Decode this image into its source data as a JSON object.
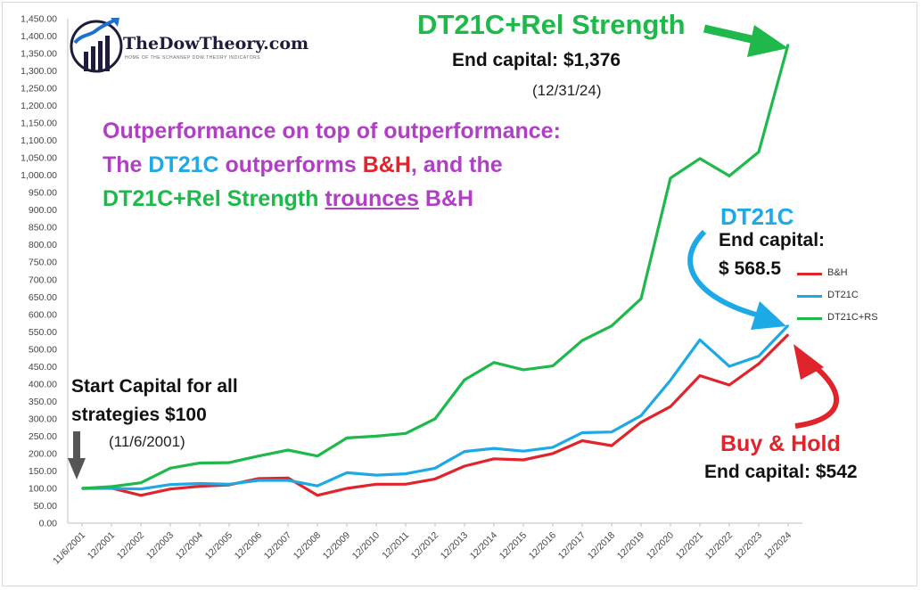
{
  "chart_data": {
    "type": "line",
    "categories": [
      "11/6/2001",
      "12/2001",
      "12/2002",
      "12/2003",
      "12/2004",
      "12/2005",
      "12/2006",
      "12/2007",
      "12/2008",
      "12/2009",
      "12/2010",
      "12/2011",
      "12/2012",
      "12/2013",
      "12/2014",
      "12/2015",
      "12/2016",
      "12/2017",
      "12/2018",
      "12/2019",
      "12/2020",
      "12/2021",
      "12/2022",
      "12/2023",
      "12/2024"
    ],
    "y_ticks": [
      "0.00",
      "50.00",
      "100.00",
      "150.00",
      "200.00",
      "250.00",
      "300.00",
      "350.00",
      "400.00",
      "450.00",
      "500.00",
      "550.00",
      "600.00",
      "650.00",
      "700.00",
      "750.00",
      "800.00",
      "850.00",
      "900.00",
      "950.00",
      "1,000.00",
      "1,050.00",
      "1,100.00",
      "1,150.00",
      "1,200.00",
      "1,250.00",
      "1,300.00",
      "1,350.00",
      "1,400.00",
      "1,450.00"
    ],
    "ylim": [
      0,
      1450
    ],
    "grid": false,
    "legend_position": "right",
    "series": [
      {
        "name": "B&H",
        "color": "#e0242b",
        "values": [
          100,
          101,
          80,
          98,
          106,
          110,
          128,
          130,
          80,
          100,
          112,
          112,
          127,
          164,
          185,
          182,
          200,
          237,
          223,
          290,
          335,
          424,
          397,
          458,
          542
        ]
      },
      {
        "name": "DT21C",
        "color": "#1ca9e6",
        "values": [
          100,
          100,
          98,
          111,
          114,
          112,
          123,
          123,
          107,
          145,
          138,
          142,
          158,
          206,
          215,
          207,
          218,
          260,
          262,
          309,
          411,
          527,
          451,
          480,
          568.5
        ]
      },
      {
        "name": "DT21C+RS",
        "color": "#1fb84a",
        "values": [
          100,
          105,
          116,
          158,
          173,
          174,
          193,
          210,
          193,
          245,
          250,
          258,
          300,
          412,
          462,
          441,
          452,
          525,
          567,
          645,
          992,
          1048,
          998,
          1067,
          1376
        ]
      }
    ]
  },
  "logo": {
    "text": "TheDowTheory.com",
    "tagline": "HOME OF THE SCHANNEP DOW THEORY INDICATORS"
  },
  "annotations": {
    "rs_title": "DT21C+Rel Strength",
    "rs_end": "End capital: $1,376",
    "rs_date": "(12/31/24)",
    "headline": {
      "p1": "Outperformance on top of outperformance: The ",
      "p2": "DT21C",
      "p3": " outperforms ",
      "p4": "B&H",
      "p5": ", and the ",
      "p6": "DT21C+Rel Strength",
      "p7": " ",
      "p8": "trounces",
      "p9": " B&H"
    },
    "dt_title": "DT21C",
    "dt_end_1": "End capital:",
    "dt_end_2": "$ 568.5",
    "start_1": "Start Capital for all",
    "start_2": "strategies $100",
    "start_date": "(11/6/2001)",
    "bh_title": "Buy & Hold",
    "bh_end": "End capital: $542"
  }
}
